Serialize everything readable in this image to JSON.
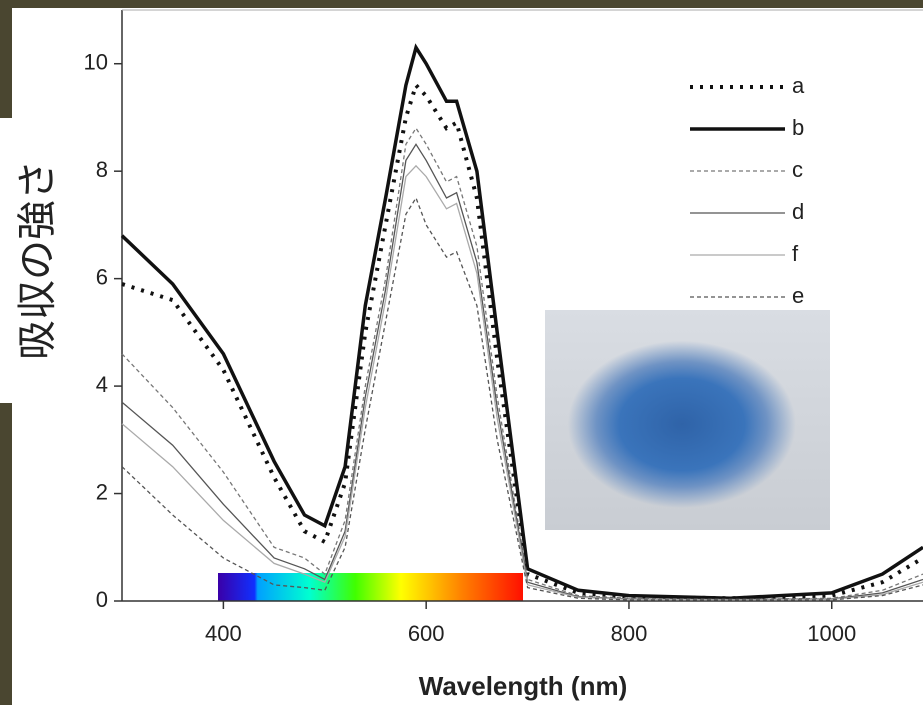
{
  "chart_data": {
    "type": "line",
    "xlabel": "Wavelength (nm)",
    "ylabel": "吸収の強さ",
    "xlim": [
      300,
      1090
    ],
    "ylim": [
      0,
      11
    ],
    "xticks": [
      400,
      600,
      800,
      1000
    ],
    "yticks": [
      0,
      2,
      4,
      6,
      8,
      10
    ],
    "x": [
      300,
      350,
      400,
      450,
      480,
      500,
      520,
      540,
      560,
      580,
      590,
      600,
      620,
      630,
      650,
      670,
      700,
      750,
      800,
      900,
      1000,
      1050,
      1090
    ],
    "series": [
      {
        "name": "a",
        "color": "#111111",
        "dash": "dotted",
        "values": [
          5.9,
          5.6,
          4.3,
          2.3,
          1.3,
          1.1,
          2.2,
          5.0,
          7.0,
          9.0,
          9.6,
          9.4,
          8.8,
          8.9,
          7.5,
          4.5,
          0.5,
          0.15,
          0.08,
          0.05,
          0.1,
          0.35,
          0.8
        ]
      },
      {
        "name": "b",
        "color": "#111111",
        "dash": "solid",
        "values": [
          6.8,
          5.9,
          4.6,
          2.6,
          1.6,
          1.4,
          2.5,
          5.5,
          7.5,
          9.6,
          10.3,
          10.0,
          9.3,
          9.3,
          8.0,
          5.0,
          0.6,
          0.2,
          0.1,
          0.05,
          0.15,
          0.5,
          1.0
        ]
      },
      {
        "name": "c",
        "color": "#777777",
        "dash": "dashed",
        "values": [
          4.6,
          3.6,
          2.4,
          1.0,
          0.8,
          0.5,
          1.5,
          4.0,
          6.0,
          8.5,
          8.8,
          8.5,
          7.8,
          7.9,
          6.6,
          3.8,
          0.4,
          0.1,
          0.05,
          0.03,
          0.05,
          0.2,
          0.5
        ]
      },
      {
        "name": "d",
        "color": "#555555",
        "dash": "solid",
        "values": [
          3.7,
          2.9,
          1.8,
          0.8,
          0.6,
          0.4,
          1.3,
          3.8,
          5.8,
          8.2,
          8.5,
          8.2,
          7.5,
          7.6,
          6.3,
          3.6,
          0.35,
          0.08,
          0.04,
          0.03,
          0.04,
          0.15,
          0.4
        ]
      },
      {
        "name": "f",
        "color": "#aaaaaa",
        "dash": "solid",
        "values": [
          3.3,
          2.5,
          1.5,
          0.7,
          0.5,
          0.35,
          1.2,
          3.6,
          5.6,
          7.9,
          8.1,
          7.9,
          7.3,
          7.4,
          6.1,
          3.4,
          0.3,
          0.07,
          0.03,
          0.02,
          0.03,
          0.12,
          0.35
        ]
      },
      {
        "name": "e",
        "color": "#555555",
        "dash": "dashed",
        "values": [
          2.5,
          1.6,
          0.8,
          0.3,
          0.25,
          0.2,
          1.0,
          3.2,
          5.2,
          7.2,
          7.5,
          7.0,
          6.4,
          6.5,
          5.5,
          3.0,
          0.25,
          0.05,
          0.02,
          0.02,
          0.02,
          0.1,
          0.3
        ]
      }
    ]
  }
}
